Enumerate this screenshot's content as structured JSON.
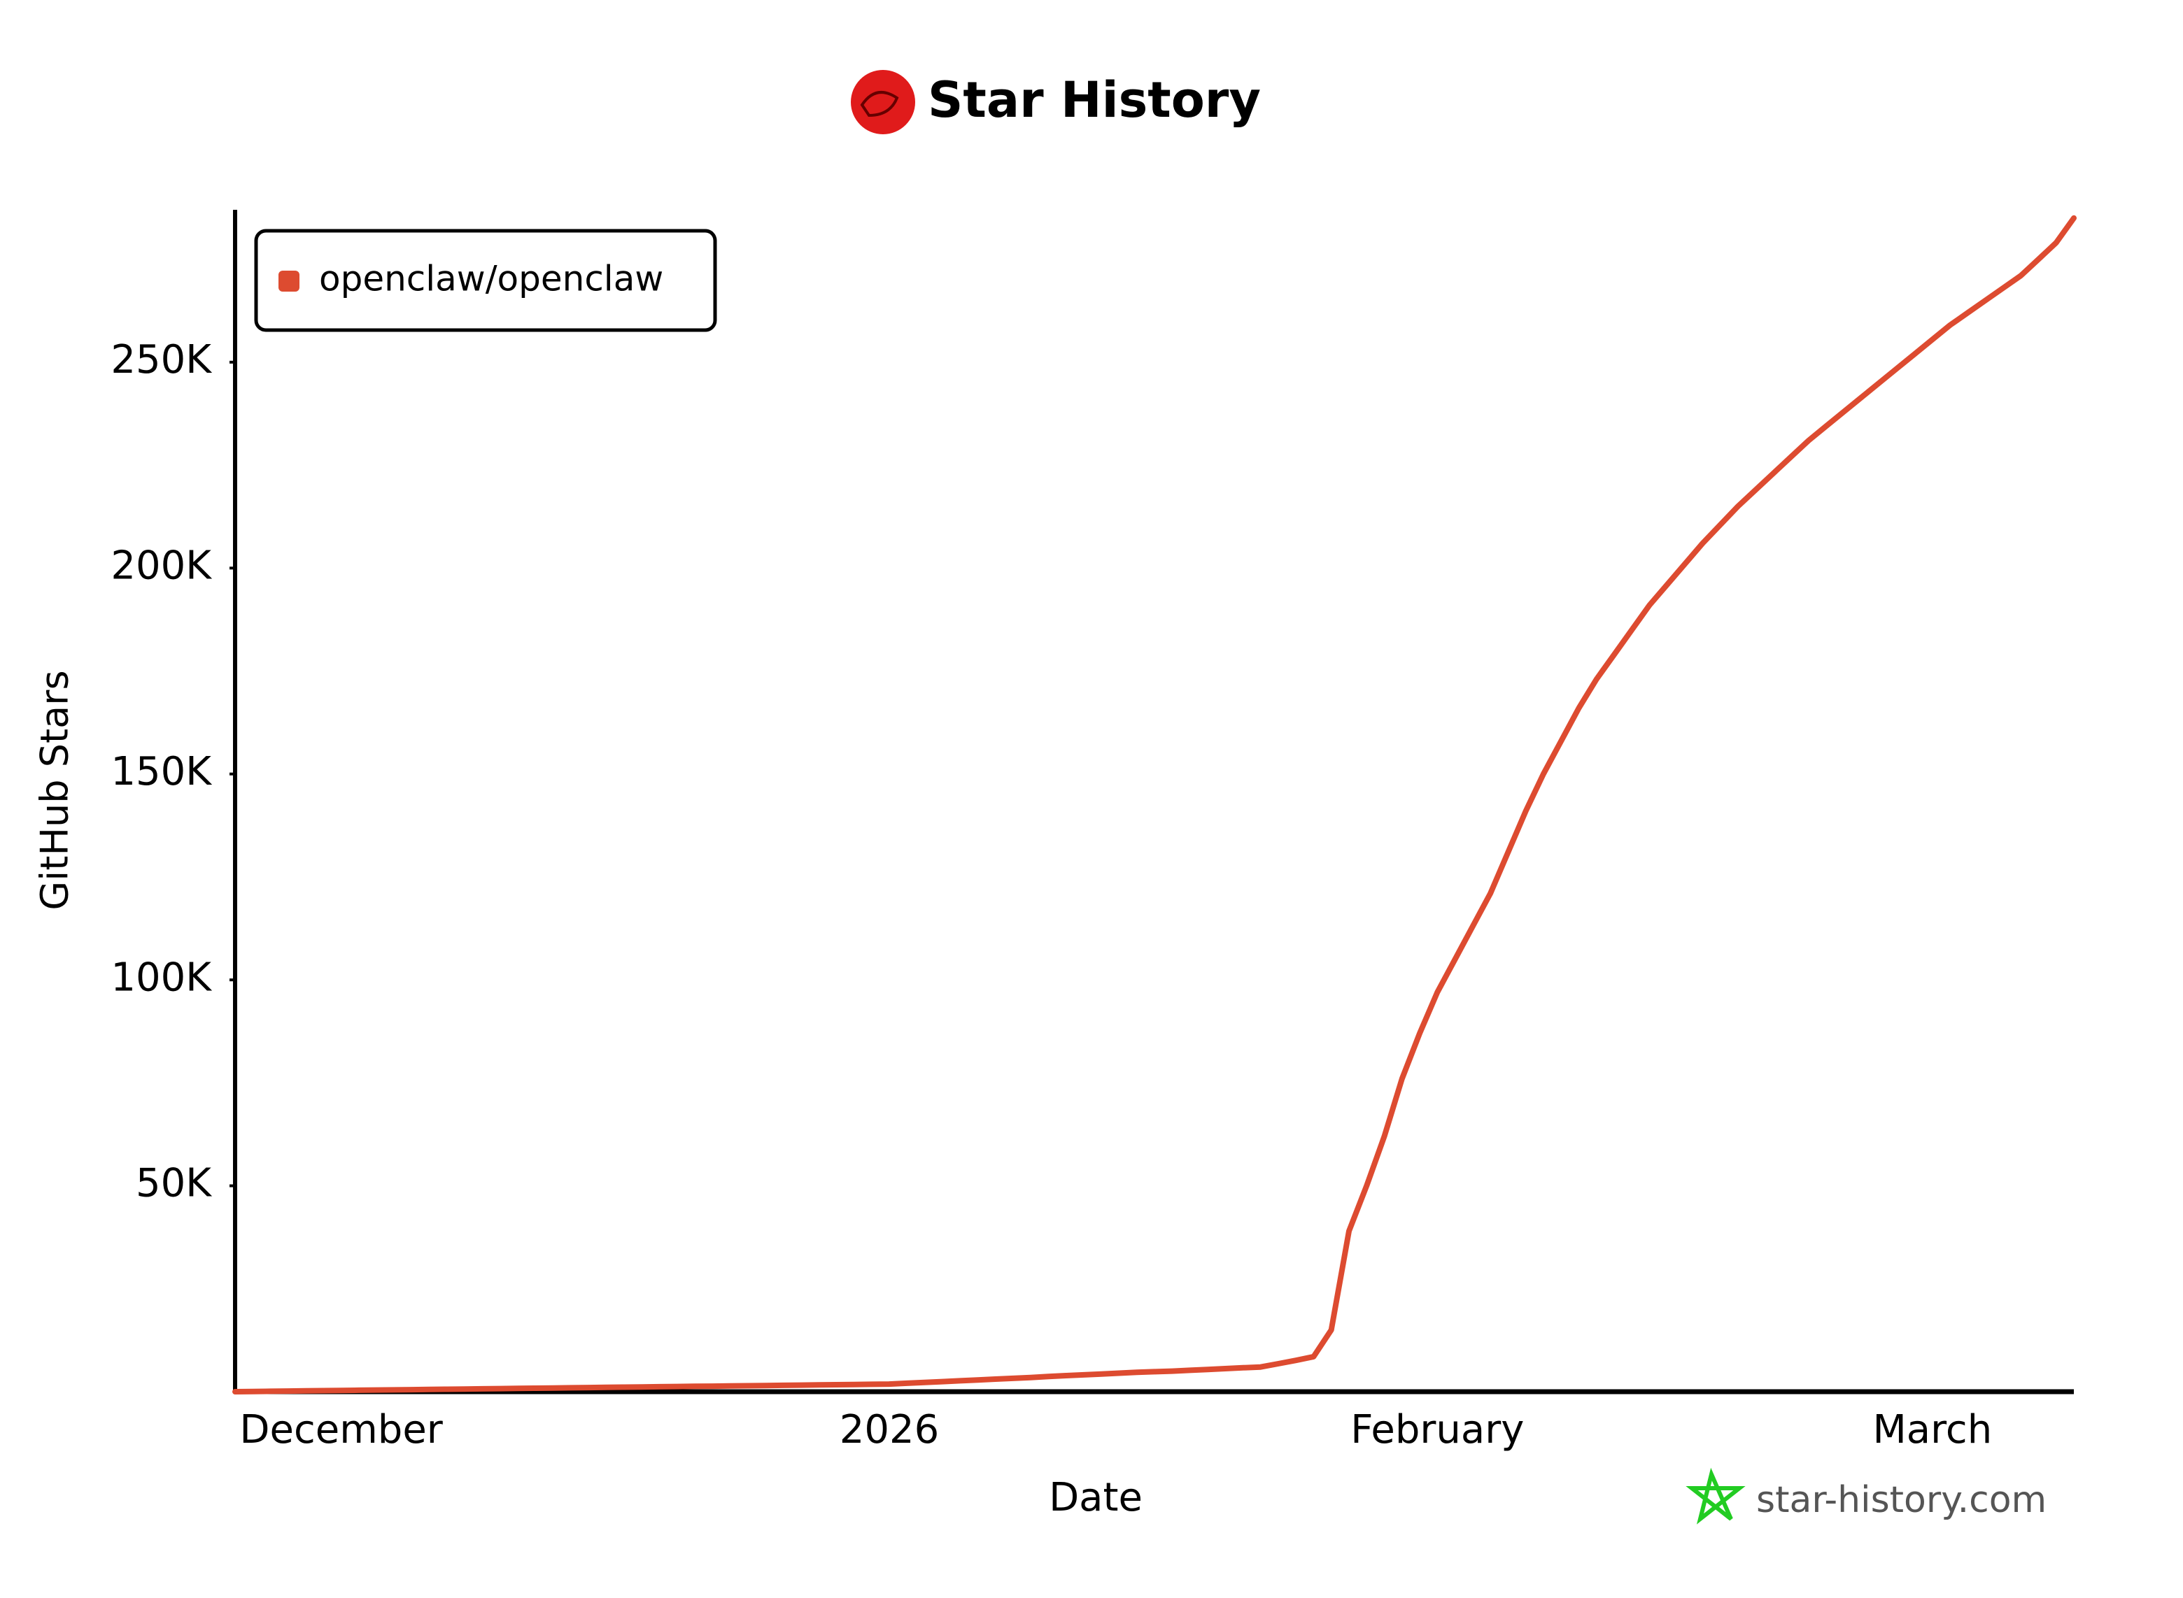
{
  "chart_data": {
    "type": "line",
    "title": "Star History",
    "x_label": "Date",
    "y_label": "GitHub Stars",
    "watermark": "star-history.com",
    "legend": "upper left",
    "categories": [
      null,
      null,
      null,
      null,
      null,
      null,
      "December",
      null,
      null,
      null,
      null,
      null,
      null,
      null,
      null,
      null,
      null,
      null,
      null,
      null,
      null,
      null,
      null,
      null,
      null,
      null,
      null,
      null,
      null,
      null,
      null,
      null,
      null,
      null,
      null,
      null,
      null,
      "2026",
      null,
      null,
      null,
      null,
      null,
      null,
      null,
      null,
      null,
      null,
      null,
      null,
      null,
      null,
      null,
      null,
      null,
      null,
      null,
      null,
      null,
      null,
      null,
      null,
      null,
      null,
      null,
      null,
      null,
      null,
      "February",
      null,
      null,
      null,
      null,
      null,
      null,
      null,
      null,
      null,
      null,
      null,
      null,
      null,
      null,
      null,
      null,
      null,
      null,
      null,
      null,
      null,
      null,
      null,
      null,
      null,
      null,
      null,
      "March",
      null,
      null,
      null,
      null,
      null,
      null,
      null,
      null
    ],
    "series": [
      {
        "name": "openclaw/openclaw",
        "color": "#dd4b30",
        "values": [
          0,
          50,
          100,
          150,
          200,
          250,
          300,
          350,
          400,
          450,
          500,
          550,
          600,
          650,
          700,
          750,
          800,
          850,
          900,
          950,
          1000,
          1050,
          1100,
          1150,
          1200,
          1250,
          1300,
          1350,
          1400,
          1450,
          1500,
          1550,
          1600,
          1650,
          1700,
          1750,
          1800,
          1850,
          2050,
          2250,
          2450,
          2650,
          2850,
          3050,
          3250,
          3450,
          3700,
          3900,
          4100,
          4300,
          4500,
          4700,
          4850,
          5000,
          5200,
          5400,
          5600,
          5800,
          6000,
          6800,
          7600,
          8500,
          15000,
          39000,
          50000,
          62000,
          76000,
          87000,
          97000,
          105000,
          113000,
          121000,
          131000,
          141000,
          150000,
          158000,
          166000,
          173000,
          179000,
          185000,
          191000,
          196000,
          201000,
          206000,
          210500,
          215000,
          219000,
          223000,
          227000,
          231000,
          234500,
          238000,
          241500,
          245000,
          248500,
          252000,
          255500,
          259000,
          262000,
          265000,
          268000,
          271000,
          275000,
          279000,
          285000
        ]
      }
    ],
    "ylim": [
      0,
      287000
    ],
    "yticks": [
      {
        "value": 50000,
        "label": "50K"
      },
      {
        "value": 100000,
        "label": "100K"
      },
      {
        "value": 150000,
        "label": "150K"
      },
      {
        "value": 200000,
        "label": "200K"
      },
      {
        "value": 250000,
        "label": "250K"
      }
    ]
  }
}
